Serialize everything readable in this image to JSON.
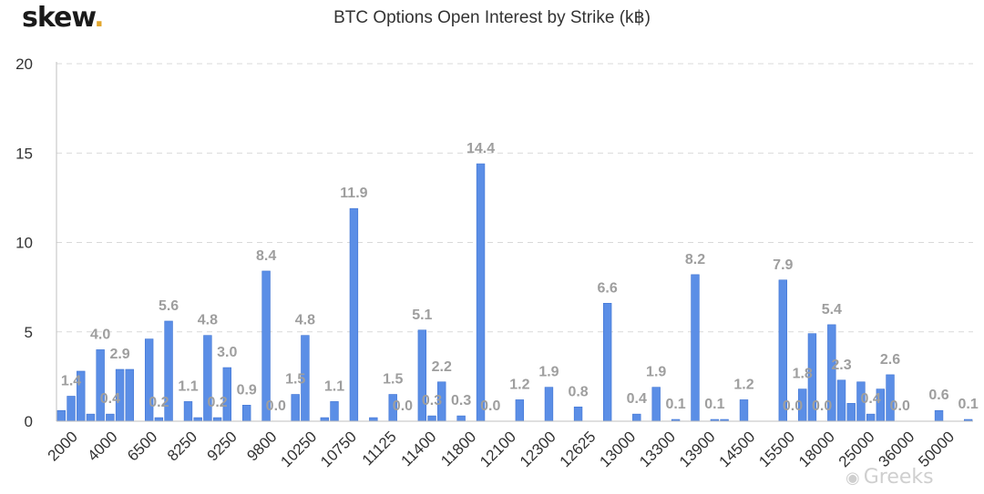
{
  "brand": {
    "name": "skew",
    "dot": "."
  },
  "watermark": {
    "text": "Greeks",
    "icon": "wechat-bubble-icon"
  },
  "colors": {
    "bar": "#5b8ee6",
    "bar_edge": "#3f74d4",
    "grid": "#d9d9d9",
    "label": "#9e9e9e",
    "axis": "#333333"
  },
  "chart_data": {
    "type": "bar",
    "title": "BTC Options Open Interest by Strike (k฿)",
    "xlabel": "",
    "ylabel": "",
    "ylim": [
      0,
      20
    ],
    "yticks": [
      0,
      5,
      10,
      15,
      20
    ],
    "grid": true,
    "x_tick_labels": [
      "2000",
      "4000",
      "6500",
      "8250",
      "9250",
      "9800",
      "10250",
      "10750",
      "11125",
      "11400",
      "11800",
      "12100",
      "12300",
      "12625",
      "13000",
      "13300",
      "13900",
      "14500",
      "15500",
      "18000",
      "25000",
      "36000",
      "50000"
    ],
    "values": [
      0.6,
      1.4,
      2.8,
      0.4,
      4.0,
      0.4,
      2.9,
      2.9,
      0.0,
      4.6,
      0.2,
      5.6,
      0.0,
      1.1,
      0.2,
      4.8,
      0.2,
      3.0,
      0.0,
      0.9,
      0.0,
      8.4,
      0.0,
      0.0,
      1.5,
      4.8,
      0.0,
      0.2,
      1.1,
      0.0,
      11.9,
      0.0,
      0.2,
      0.0,
      1.5,
      0.0,
      0.0,
      5.1,
      0.3,
      2.2,
      0.0,
      0.3,
      0.0,
      14.4,
      0.0,
      0.0,
      0.0,
      1.2,
      0.0,
      0.0,
      1.9,
      0.0,
      0.0,
      0.8,
      0.0,
      0.0,
      6.6,
      0.0,
      0.0,
      0.4,
      0.0,
      1.9,
      0.0,
      0.1,
      0.0,
      8.2,
      0.0,
      0.1,
      0.1,
      0.0,
      1.2,
      0.0,
      0.0,
      0.0,
      7.9,
      0.0,
      1.8,
      4.9,
      0.0,
      5.4,
      2.3,
      1.0,
      2.2,
      0.4,
      1.8,
      2.6,
      0.0,
      0.0,
      0.0,
      0.0,
      0.6,
      0.0,
      0.0,
      0.1
    ],
    "data_labels": [
      {
        "bar": 1,
        "text": "1.4"
      },
      {
        "bar": 4,
        "text": "4.0"
      },
      {
        "bar": 5,
        "text": "0.4"
      },
      {
        "bar": 6,
        "text": "2.9"
      },
      {
        "bar": 10,
        "text": "0.2"
      },
      {
        "bar": 11,
        "text": "5.6"
      },
      {
        "bar": 13,
        "text": "1.1"
      },
      {
        "bar": 15,
        "text": "4.8"
      },
      {
        "bar": 16,
        "text": "0.2"
      },
      {
        "bar": 17,
        "text": "3.0"
      },
      {
        "bar": 19,
        "text": "0.9"
      },
      {
        "bar": 21,
        "text": "8.4"
      },
      {
        "bar": 22,
        "text": "0.0"
      },
      {
        "bar": 24,
        "text": "1.5"
      },
      {
        "bar": 25,
        "text": "4.8"
      },
      {
        "bar": 28,
        "text": "1.1"
      },
      {
        "bar": 30,
        "text": "11.9"
      },
      {
        "bar": 34,
        "text": "1.5"
      },
      {
        "bar": 35,
        "text": "0.0"
      },
      {
        "bar": 37,
        "text": "5.1"
      },
      {
        "bar": 38,
        "text": "0.3"
      },
      {
        "bar": 39,
        "text": "2.2"
      },
      {
        "bar": 41,
        "text": "0.3"
      },
      {
        "bar": 43,
        "text": "14.4"
      },
      {
        "bar": 44,
        "text": "0.0"
      },
      {
        "bar": 47,
        "text": "1.2"
      },
      {
        "bar": 50,
        "text": "1.9"
      },
      {
        "bar": 53,
        "text": "0.8"
      },
      {
        "bar": 56,
        "text": "6.6"
      },
      {
        "bar": 59,
        "text": "0.4"
      },
      {
        "bar": 61,
        "text": "1.9"
      },
      {
        "bar": 63,
        "text": "0.1"
      },
      {
        "bar": 65,
        "text": "8.2"
      },
      {
        "bar": 67,
        "text": "0.1"
      },
      {
        "bar": 70,
        "text": "1.2"
      },
      {
        "bar": 74,
        "text": "7.9"
      },
      {
        "bar": 75,
        "text": "0.0"
      },
      {
        "bar": 76,
        "text": "1.8"
      },
      {
        "bar": 78,
        "text": "0.0"
      },
      {
        "bar": 79,
        "text": "5.4"
      },
      {
        "bar": 80,
        "text": "2.3"
      },
      {
        "bar": 83,
        "text": "0.4"
      },
      {
        "bar": 85,
        "text": "2.6"
      },
      {
        "bar": 86,
        "text": "0.0"
      },
      {
        "bar": 90,
        "text": "0.6"
      },
      {
        "bar": 93,
        "text": "0.1"
      }
    ]
  }
}
